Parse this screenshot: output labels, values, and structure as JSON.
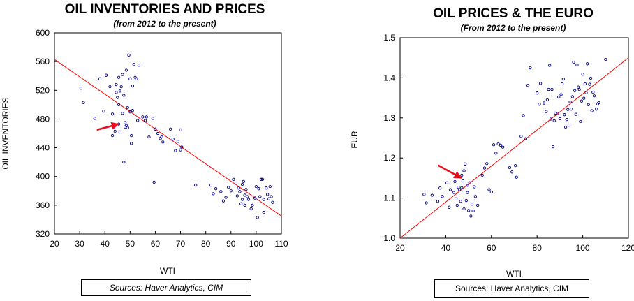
{
  "chart_data": [
    {
      "type": "scatter",
      "title": "OIL INVENTORIES AND PRICES",
      "subtitle": "(from 2012 to the present)",
      "xlabel": "WTI",
      "ylabel": "OIL INVENTORIES",
      "xlim": [
        20,
        110
      ],
      "ylim": [
        320,
        600
      ],
      "xticks": [
        20,
        30,
        40,
        50,
        60,
        70,
        80,
        90,
        100,
        110
      ],
      "yticks": [
        320,
        360,
        400,
        440,
        480,
        520,
        560,
        600
      ],
      "grid": false,
      "point_color": "#00008b",
      "trend_color": "#ff0000",
      "trend_line": [
        [
          20,
          563
        ],
        [
          110,
          345
        ]
      ],
      "annotation_arrow": {
        "from": [
          36.8,
          465
        ],
        "to": [
          45.4,
          473
        ],
        "color": "#e8101f"
      },
      "source": "Sources:  Haver Analytics, CIM",
      "points": [
        [
          30.5,
          523
        ],
        [
          31.5,
          503
        ],
        [
          36,
          481
        ],
        [
          38,
          536
        ],
        [
          39.5,
          491
        ],
        [
          40.5,
          541
        ],
        [
          42,
          525
        ],
        [
          43,
          457
        ],
        [
          43,
          487
        ],
        [
          44,
          463
        ],
        [
          44.5,
          517
        ],
        [
          44.5,
          528
        ],
        [
          45,
          510
        ],
        [
          45.5,
          500
        ],
        [
          45.5,
          473
        ],
        [
          45.5,
          538
        ],
        [
          46,
          519
        ],
        [
          46,
          462
        ],
        [
          46.5,
          525
        ],
        [
          47,
          542
        ],
        [
          47,
          488
        ],
        [
          47.5,
          513
        ],
        [
          47.5,
          420
        ],
        [
          48,
          475
        ],
        [
          48,
          469
        ],
        [
          48.5,
          548
        ],
        [
          48.5,
          471
        ],
        [
          49,
          496
        ],
        [
          49,
          468
        ],
        [
          49.5,
          569
        ],
        [
          50,
          536
        ],
        [
          50,
          490
        ],
        [
          50.5,
          457
        ],
        [
          50.5,
          446
        ],
        [
          51,
          526
        ],
        [
          51,
          492
        ],
        [
          51.5,
          556
        ],
        [
          52,
          538
        ],
        [
          52.5,
          536
        ],
        [
          53,
          478
        ],
        [
          53.5,
          555
        ],
        [
          55,
          483
        ],
        [
          56,
          478
        ],
        [
          56.5,
          483
        ],
        [
          57.5,
          455
        ],
        [
          59,
          481
        ],
        [
          59.5,
          392
        ],
        [
          60,
          466
        ],
        [
          61,
          460
        ],
        [
          62,
          453
        ],
        [
          62.5,
          455
        ],
        [
          63,
          448
        ],
        [
          66,
          466
        ],
        [
          67,
          452
        ],
        [
          68,
          436
        ],
        [
          69,
          449
        ],
        [
          70,
          465
        ],
        [
          70,
          437
        ],
        [
          70.5,
          441
        ],
        [
          76,
          388
        ],
        [
          82,
          388
        ],
        [
          83,
          376
        ],
        [
          84,
          383
        ],
        [
          86,
          379
        ],
        [
          87,
          366
        ],
        [
          88,
          371
        ],
        [
          89,
          385
        ],
        [
          90,
          380
        ],
        [
          91,
          396
        ],
        [
          92,
          391
        ],
        [
          92.5,
          373
        ],
        [
          93,
          384
        ],
        [
          93.5,
          379
        ],
        [
          94,
          362
        ],
        [
          94.5,
          368
        ],
        [
          94.5,
          389
        ],
        [
          95,
          393
        ],
        [
          95.5,
          360
        ],
        [
          95.5,
          374
        ],
        [
          96,
          382
        ],
        [
          96.5,
          372
        ],
        [
          97,
          368
        ],
        [
          98,
          355
        ],
        [
          98.5,
          360
        ],
        [
          99.5,
          370
        ],
        [
          100,
          386
        ],
        [
          100.5,
          343
        ],
        [
          101,
          383
        ],
        [
          101.5,
          372
        ],
        [
          102,
          396
        ],
        [
          102.5,
          396
        ],
        [
          103,
          368
        ],
        [
          103,
          350
        ],
        [
          104,
          384
        ],
        [
          104.5,
          375
        ],
        [
          105,
          369
        ],
        [
          105.5,
          386
        ],
        [
          106,
          372
        ],
        [
          106.5,
          364
        ]
      ]
    },
    {
      "type": "scatter",
      "title": "OIL PRICES & THE EURO",
      "subtitle": "(From 2012 to the present)",
      "xlabel": "WTI",
      "ylabel": "EUR",
      "xlim": [
        20,
        120
      ],
      "ylim": [
        1.0,
        1.5
      ],
      "xticks": [
        20,
        40,
        60,
        80,
        100,
        120
      ],
      "yticks": [
        1.0,
        1.1,
        1.2,
        1.3,
        1.4,
        1.5
      ],
      "grid": false,
      "point_color": "#00008b",
      "trend_color": "#ff0000",
      "trend_line": [
        [
          20,
          1.0
        ],
        [
          120,
          1.45
        ]
      ],
      "annotation_arrow": {
        "from": [
          36.6,
          1.182
        ],
        "to": [
          46.8,
          1.15
        ],
        "color": "#e8101f"
      },
      "source": "Sources:  Haver Analytics, CIM",
      "points": [
        [
          30.5,
          1.109
        ],
        [
          31.5,
          1.088
        ],
        [
          34,
          1.107
        ],
        [
          36.5,
          1.092
        ],
        [
          37.5,
          1.125
        ],
        [
          38.5,
          1.104
        ],
        [
          40.5,
          1.138
        ],
        [
          41.5,
          1.077
        ],
        [
          42,
          1.121
        ],
        [
          43.5,
          1.114
        ],
        [
          44,
          1.141
        ],
        [
          44.5,
          1.098
        ],
        [
          45,
          1.082
        ],
        [
          45.5,
          1.127
        ],
        [
          46,
          1.121
        ],
        [
          46.5,
          1.092
        ],
        [
          47,
          1.126
        ],
        [
          47,
          1.157
        ],
        [
          47.5,
          1.143
        ],
        [
          48,
          1.073
        ],
        [
          48,
          1.168
        ],
        [
          48.5,
          1.185
        ],
        [
          49,
          1.094
        ],
        [
          49.5,
          1.132
        ],
        [
          49.5,
          1.114
        ],
        [
          50,
          1.069
        ],
        [
          50.5,
          1.138
        ],
        [
          51,
          1.055
        ],
        [
          51.5,
          1.085
        ],
        [
          52,
          1.068
        ],
        [
          52.5,
          1.128
        ],
        [
          53,
          1.104
        ],
        [
          54,
          1.082
        ],
        [
          56,
          1.157
        ],
        [
          57,
          1.175
        ],
        [
          58,
          1.186
        ],
        [
          59,
          1.121
        ],
        [
          60,
          1.115
        ],
        [
          61,
          1.233
        ],
        [
          62,
          1.212
        ],
        [
          63,
          1.235
        ],
        [
          64,
          1.232
        ],
        [
          65,
          1.227
        ],
        [
          68,
          1.176
        ],
        [
          69,
          1.165
        ],
        [
          70.5,
          1.181
        ],
        [
          71,
          1.152
        ],
        [
          73,
          1.254
        ],
        [
          74,
          1.306
        ],
        [
          75,
          1.248
        ],
        [
          76,
          1.381
        ],
        [
          77,
          1.425
        ],
        [
          80,
          1.362
        ],
        [
          81,
          1.334
        ],
        [
          81.5,
          1.386
        ],
        [
          83,
          1.337
        ],
        [
          84,
          1.316
        ],
        [
          84.5,
          1.345
        ],
        [
          85,
          1.371
        ],
        [
          85.5,
          1.431
        ],
        [
          86,
          1.297
        ],
        [
          86.5,
          1.371
        ],
        [
          87,
          1.228
        ],
        [
          87.5,
          1.293
        ],
        [
          88,
          1.312
        ],
        [
          89,
          1.311
        ],
        [
          89.5,
          1.352
        ],
        [
          90,
          1.298
        ],
        [
          90.5,
          1.358
        ],
        [
          91,
          1.385
        ],
        [
          91.5,
          1.397
        ],
        [
          92,
          1.308
        ],
        [
          92.5,
          1.277
        ],
        [
          93,
          1.296
        ],
        [
          93.5,
          1.321
        ],
        [
          94,
          1.282
        ],
        [
          94.5,
          1.34
        ],
        [
          95,
          1.322
        ],
        [
          95.5,
          1.353
        ],
        [
          96,
          1.439
        ],
        [
          96.5,
          1.368
        ],
        [
          97,
          1.309
        ],
        [
          97.5,
          1.432
        ],
        [
          98,
          1.377
        ],
        [
          98.5,
          1.371
        ],
        [
          99,
          1.291
        ],
        [
          99.5,
          1.342
        ],
        [
          100,
          1.409
        ],
        [
          100.5,
          1.349
        ],
        [
          101,
          1.385
        ],
        [
          101.5,
          1.363
        ],
        [
          102,
          1.435
        ],
        [
          102.5,
          1.333
        ],
        [
          103,
          1.384
        ],
        [
          103.5,
          1.399
        ],
        [
          104,
          1.318
        ],
        [
          104.5,
          1.364
        ],
        [
          105,
          1.355
        ],
        [
          106,
          1.322
        ],
        [
          106.5,
          1.335
        ],
        [
          107,
          1.338
        ],
        [
          110,
          1.446
        ]
      ]
    }
  ]
}
